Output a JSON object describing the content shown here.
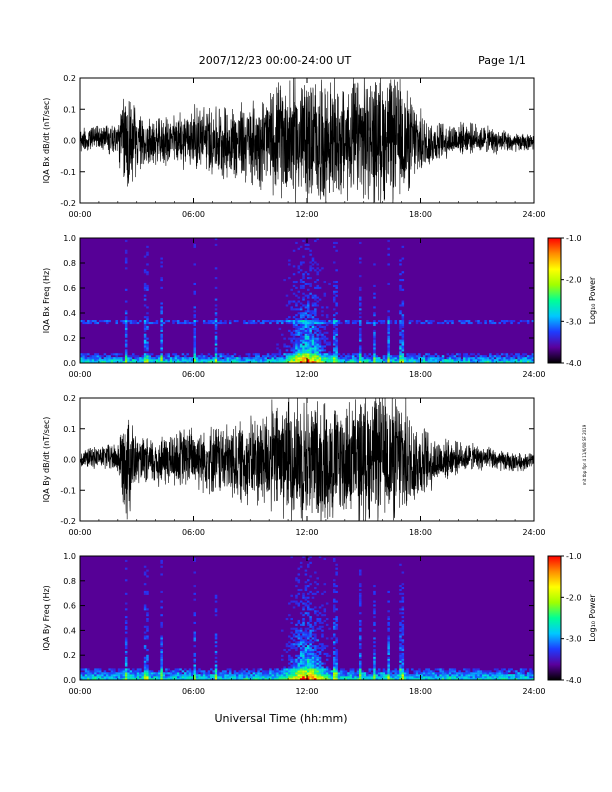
{
  "header": {
    "date_range": "2007/12/23  00:00-24:00 UT",
    "page": "Page 1/1"
  },
  "side_note": "mit tbp flpr 4 11/6/08 SF 2019",
  "x_axis_title": "Universal Time (hh:mm)",
  "chart_data": [
    {
      "type": "line",
      "panel": "bx-dbdt",
      "ylabel": "IQA Bx dB/dt (nT/sec)",
      "xlim": [
        0,
        24
      ],
      "ylim": [
        -0.2,
        0.2
      ],
      "x_ticks": [
        "00:00",
        "06:00",
        "12:00",
        "18:00",
        "24:00"
      ],
      "y_ticks": [
        "-0.2",
        "-0.1",
        "0.0",
        "0.1",
        "0.2"
      ],
      "envelope": {
        "x_hours": [
          0,
          1,
          2,
          2.5,
          3,
          4,
          5,
          6,
          7,
          8,
          9,
          10,
          11,
          12,
          13,
          14,
          15,
          16,
          17,
          18,
          19,
          20,
          21,
          22,
          23,
          24
        ],
        "amplitude": [
          0.035,
          0.04,
          0.06,
          0.2,
          0.09,
          0.07,
          0.08,
          0.1,
          0.11,
          0.12,
          0.13,
          0.15,
          0.2,
          0.2,
          0.2,
          0.18,
          0.2,
          0.2,
          0.19,
          0.1,
          0.06,
          0.05,
          0.045,
          0.04,
          0.03,
          0.025
        ]
      }
    },
    {
      "type": "heatmap",
      "panel": "bx-spectrogram",
      "ylabel": "IQA Bx Freq (Hz)",
      "xlim": [
        0,
        24
      ],
      "ylim": [
        0,
        1.0
      ],
      "x_ticks": [
        "00:00",
        "06:00",
        "12:00",
        "18:00",
        "24:00"
      ],
      "y_ticks": [
        "0.0",
        "0.2",
        "0.4",
        "0.6",
        "0.8",
        "1.0"
      ],
      "colorbar": {
        "label": "Log₁₀ Power",
        "range": [
          -4.0,
          -1.0
        ],
        "ticks": [
          "-1.0",
          "-2.0",
          "-3.0",
          "-4.0"
        ],
        "colors": [
          "#000000",
          "#5a009c",
          "#1e3cff",
          "#00c8ff",
          "#00ff96",
          "#a0ff00",
          "#ffff00",
          "#ff8c00",
          "#ff0000"
        ]
      },
      "features": {
        "background_log_power": -3.7,
        "low_freq_band_hz": 0.08,
        "horizontal_line_hz": 0.33,
        "burst_center_hour": 12,
        "vertical_streaks_hours": [
          2.4,
          3.5,
          4.3,
          6.1,
          7.2,
          13.5,
          14.8,
          15.6,
          16.3,
          17.0
        ]
      }
    },
    {
      "type": "line",
      "panel": "by-dbdt",
      "ylabel": "IQA By dB/dt (nT/sec)",
      "xlim": [
        0,
        24
      ],
      "ylim": [
        -0.2,
        0.2
      ],
      "x_ticks": [
        "00:00",
        "06:00",
        "12:00",
        "18:00",
        "24:00"
      ],
      "y_ticks": [
        "-0.2",
        "-0.1",
        "0.0",
        "0.1",
        "0.2"
      ],
      "envelope": {
        "x_hours": [
          0,
          1,
          2,
          2.5,
          3,
          4,
          5,
          6,
          7,
          8,
          9,
          10,
          11,
          12,
          13,
          14,
          15,
          16,
          17,
          18,
          19,
          20,
          21,
          22,
          23,
          24
        ],
        "amplitude": [
          0.03,
          0.035,
          0.05,
          0.2,
          0.07,
          0.08,
          0.09,
          0.1,
          0.11,
          0.12,
          0.14,
          0.17,
          0.2,
          0.2,
          0.2,
          0.18,
          0.2,
          0.2,
          0.2,
          0.12,
          0.07,
          0.05,
          0.04,
          0.035,
          0.03,
          0.025
        ]
      }
    },
    {
      "type": "heatmap",
      "panel": "by-spectrogram",
      "ylabel": "IQA By Freq (Hz)",
      "xlim": [
        0,
        24
      ],
      "ylim": [
        0,
        1.0
      ],
      "x_ticks": [
        "00:00",
        "06:00",
        "12:00",
        "18:00",
        "24:00"
      ],
      "y_ticks": [
        "0.0",
        "0.2",
        "0.4",
        "0.6",
        "0.8",
        "1.0"
      ],
      "colorbar": {
        "label": "Log₁₀ Power",
        "range": [
          -4.0,
          -1.0
        ],
        "ticks": [
          "-1.0",
          "-2.0",
          "-3.0",
          "-4.0"
        ],
        "colors": [
          "#000000",
          "#5a009c",
          "#1e3cff",
          "#00c8ff",
          "#00ff96",
          "#a0ff00",
          "#ffff00",
          "#ff8c00",
          "#ff0000"
        ]
      },
      "features": {
        "background_log_power": -3.7,
        "low_freq_band_hz": 0.1,
        "burst_center_hour": 12,
        "vertical_streaks_hours": [
          2.4,
          3.5,
          4.3,
          6.1,
          7.2,
          13.5,
          14.8,
          15.6,
          16.3,
          17.0
        ]
      }
    }
  ]
}
